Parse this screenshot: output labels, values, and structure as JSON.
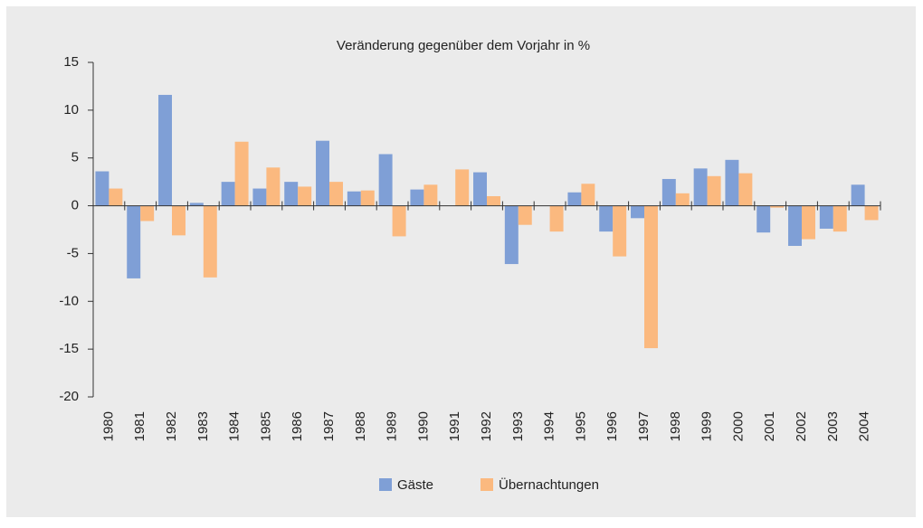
{
  "chart_data": {
    "type": "bar",
    "title": "Veränderung gegenüber dem Vorjahr in %",
    "categories": [
      "1980",
      "1981",
      "1982",
      "1983",
      "1984",
      "1985",
      "1986",
      "1987",
      "1988",
      "1989",
      "1990",
      "1991",
      "1992",
      "1993",
      "1994",
      "1995",
      "1996",
      "1997",
      "1998",
      "1999",
      "2000",
      "2001",
      "2002",
      "2003",
      "2004"
    ],
    "series": [
      {
        "name": "Gäste",
        "color": "#7f9fd6",
        "values": [
          3.6,
          -7.6,
          11.6,
          0.3,
          2.5,
          1.8,
          2.5,
          6.8,
          1.5,
          5.4,
          1.7,
          0,
          3.5,
          -6.1,
          0,
          1.4,
          -2.7,
          -1.3,
          2.8,
          3.9,
          4.8,
          -2.8,
          -4.2,
          -2.4,
          2.2
        ]
      },
      {
        "name": "Übernachtungen",
        "color": "#fbb97f",
        "values": [
          1.8,
          -1.6,
          -3.1,
          -7.5,
          6.7,
          4.0,
          2.0,
          2.5,
          1.6,
          -3.2,
          2.2,
          3.8,
          1.0,
          -2.0,
          -2.7,
          2.3,
          -5.3,
          -14.9,
          1.3,
          3.1,
          3.4,
          -0.2,
          -3.5,
          -2.7,
          -1.5
        ]
      }
    ],
    "ylim": [
      -20,
      15
    ],
    "yticks": [
      -20,
      -15,
      -10,
      -5,
      0,
      5,
      10,
      15
    ],
    "grid": false,
    "legend": "bottom"
  }
}
